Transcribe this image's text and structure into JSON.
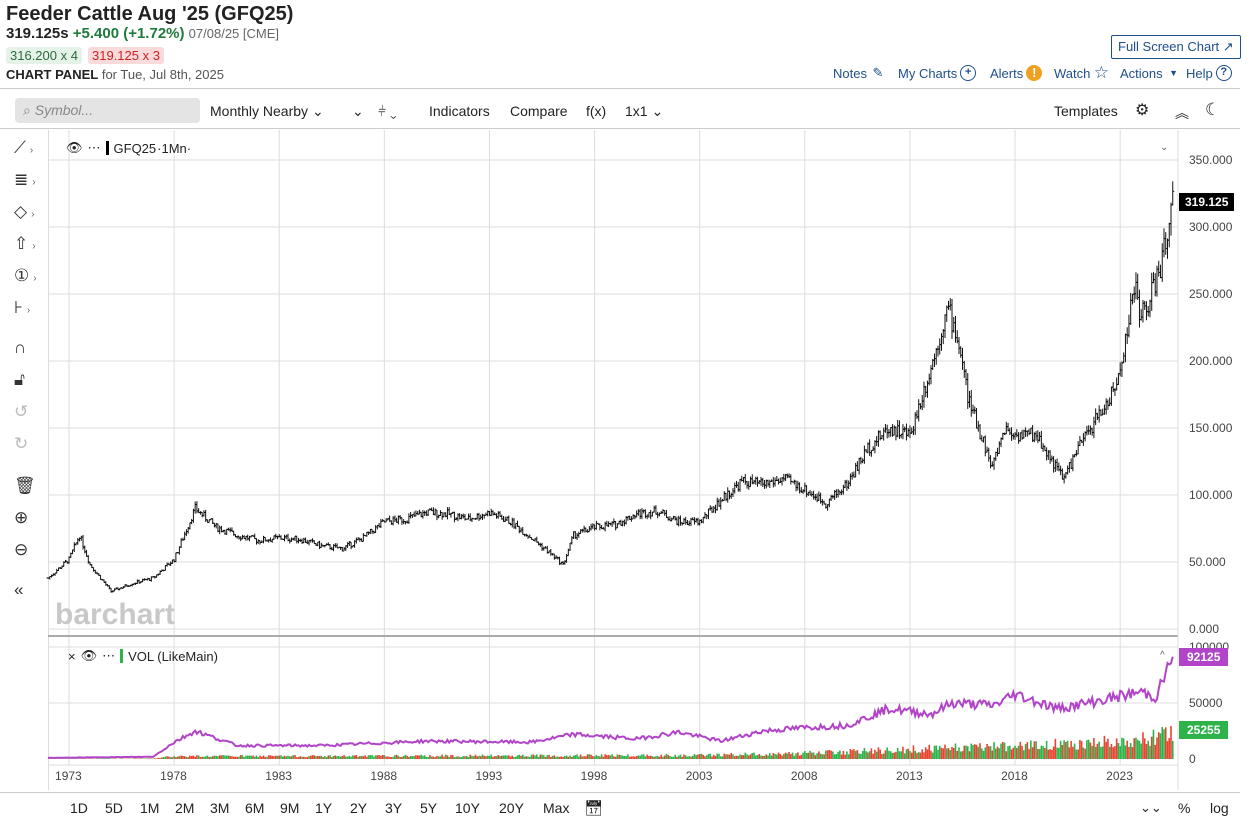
{
  "header": {
    "title": "Feeder Cattle Aug '25 (GFQ25)",
    "last": "319.125s",
    "change": "+5.400 (+1.72%)",
    "date_exchange": "07/08/25 [CME]",
    "bid": "316.200 x 4",
    "ask": "319.125 x 3",
    "panel_label": "CHART PANEL",
    "panel_date": "for Tue, Jul 8th, 2025",
    "full_screen": "Full Screen Chart ↗"
  },
  "links": {
    "notes": "Notes",
    "my_charts": "My Charts",
    "alerts": "Alerts",
    "watch": "Watch",
    "actions": "Actions",
    "help": "Help"
  },
  "toolbar": {
    "search_placeholder": "Symbol...",
    "period": "Monthly Nearby",
    "indicators": "Indicators",
    "compare": "Compare",
    "fx": "f(x)",
    "layout": "1x1",
    "templates": "Templates"
  },
  "legend": {
    "main": "GFQ25",
    "main_interval": "·1Mn·",
    "vol": "VOL (LikeMain)"
  },
  "watermark": "barchart",
  "ranges": [
    "1D",
    "5D",
    "1M",
    "2M",
    "3M",
    "6M",
    "9M",
    "1Y",
    "2Y",
    "3Y",
    "5Y",
    "10Y",
    "20Y",
    "Max"
  ],
  "bottom_right": {
    "pct": "%",
    "log": "log"
  },
  "colors": {
    "up": "#2db34a",
    "down": "#e8432f",
    "vol_line": "#b144c8",
    "last_badge": "#000000"
  },
  "chart_data": {
    "type": "ohlc",
    "x_ticks": [
      "1973",
      "1978",
      "1983",
      "1988",
      "1993",
      "1998",
      "2003",
      "2008",
      "2013",
      "2018",
      "2023"
    ],
    "y_ticks": [
      "350.000",
      "300.000",
      "250.000",
      "200.000",
      "150.000",
      "100.000",
      "50.000",
      "0.000"
    ],
    "ylim": [
      0,
      350
    ],
    "xlim": [
      1972,
      2025.75
    ],
    "last_value": "319.125",
    "price_path": [
      [
        1972,
        38
      ],
      [
        1973,
        52
      ],
      [
        1973.5,
        70
      ],
      [
        1974,
        48
      ],
      [
        1975,
        28
      ],
      [
        1976,
        34
      ],
      [
        1977,
        38
      ],
      [
        1978,
        52
      ],
      [
        1979,
        90
      ],
      [
        1980,
        76
      ],
      [
        1981,
        70
      ],
      [
        1982,
        66
      ],
      [
        1983,
        68
      ],
      [
        1984,
        67
      ],
      [
        1985,
        62
      ],
      [
        1986,
        60
      ],
      [
        1987,
        68
      ],
      [
        1988,
        80
      ],
      [
        1989,
        82
      ],
      [
        1990,
        87
      ],
      [
        1991,
        86
      ],
      [
        1992,
        82
      ],
      [
        1993,
        87
      ],
      [
        1994,
        80
      ],
      [
        1995,
        68
      ],
      [
        1996,
        55
      ],
      [
        1996.5,
        48
      ],
      [
        1997,
        70
      ],
      [
        1998,
        76
      ],
      [
        1999,
        78
      ],
      [
        2000,
        86
      ],
      [
        2001,
        88
      ],
      [
        2002,
        80
      ],
      [
        2003,
        80
      ],
      [
        2004,
        96
      ],
      [
        2005,
        110
      ],
      [
        2006,
        108
      ],
      [
        2007,
        112
      ],
      [
        2008,
        104
      ],
      [
        2009,
        94
      ],
      [
        2010,
        108
      ],
      [
        2011,
        135
      ],
      [
        2012,
        150
      ],
      [
        2013,
        145
      ],
      [
        2014,
        195
      ],
      [
        2014.8,
        240
      ],
      [
        2015.3,
        215
      ],
      [
        2015.8,
        170
      ],
      [
        2016.5,
        140
      ],
      [
        2016.9,
        120
      ],
      [
        2017.5,
        150
      ],
      [
        2018,
        145
      ],
      [
        2019,
        145
      ],
      [
        2020.3,
        112
      ],
      [
        2021,
        135
      ],
      [
        2022,
        160
      ],
      [
        2022.8,
        180
      ],
      [
        2023.3,
        220
      ],
      [
        2023.7,
        258
      ],
      [
        2024,
        232
      ],
      [
        2024.5,
        250
      ],
      [
        2025,
        275
      ],
      [
        2025.5,
        319
      ]
    ],
    "volume": {
      "y_ticks": [
        "100000",
        "50000",
        "0"
      ],
      "ylim": [
        0,
        100000
      ],
      "last_avg": "92125",
      "last_volume": "25255",
      "avg_path": [
        [
          1972,
          1000
        ],
        [
          1977,
          2000
        ],
        [
          1978,
          15000
        ],
        [
          1979,
          25000
        ],
        [
          1981,
          12000
        ],
        [
          1985,
          12000
        ],
        [
          1990,
          16000
        ],
        [
          1995,
          15000
        ],
        [
          1997,
          22000
        ],
        [
          2000,
          18000
        ],
        [
          2002,
          24000
        ],
        [
          2004,
          16000
        ],
        [
          2006,
          25000
        ],
        [
          2008,
          28000
        ],
        [
          2010,
          30000
        ],
        [
          2012,
          45000
        ],
        [
          2014,
          40000
        ],
        [
          2015,
          50000
        ],
        [
          2017,
          48000
        ],
        [
          2018,
          58000
        ],
        [
          2020,
          45000
        ],
        [
          2022,
          52000
        ],
        [
          2024,
          60000
        ],
        [
          2024.7,
          55000
        ],
        [
          2025.5,
          92125
        ]
      ],
      "bar_path": [
        [
          1972,
          200
        ],
        [
          1977,
          500
        ],
        [
          1978,
          3000
        ],
        [
          1985,
          3000
        ],
        [
          1995,
          3500
        ],
        [
          2003,
          4000
        ],
        [
          2008,
          6000
        ],
        [
          2013,
          10000
        ],
        [
          2018,
          14000
        ],
        [
          2023,
          18000
        ],
        [
          2025.5,
          25255
        ]
      ]
    }
  }
}
